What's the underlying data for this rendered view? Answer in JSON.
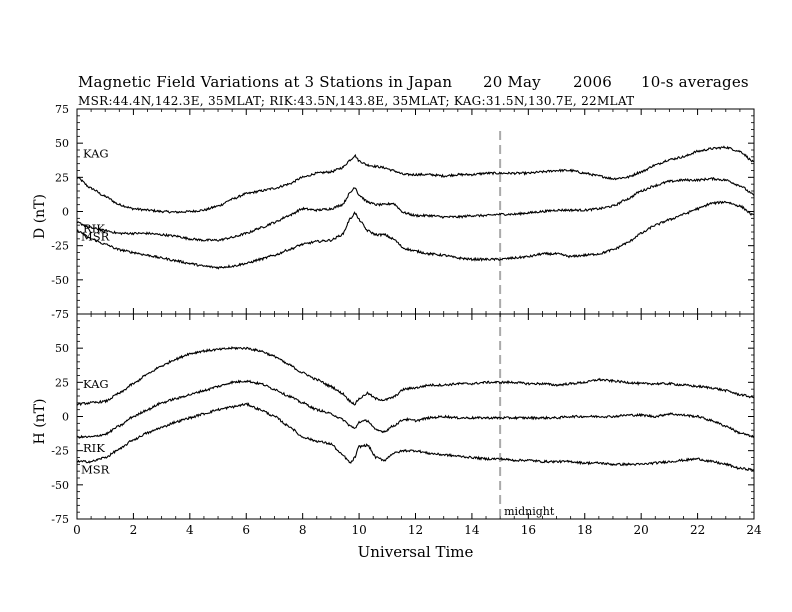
{
  "header": {
    "title": "Magnetic Field Variations at 3 Stations in Japan",
    "date": "20 May",
    "year": "2006",
    "averaging": "10-s averages",
    "stations_line": "MSR:44.4N,142.3E, 35MLAT;  RIK:43.5N,143.8E, 35MLAT;  KAG:31.5N,130.7E, 22MLAT"
  },
  "colors": {
    "trace": "#000000",
    "midnight_line": "#aaaaaa",
    "axis": "#000000"
  },
  "chart_data": [
    {
      "type": "line",
      "panel": "D",
      "ylabel": "D (nT)",
      "ylim": [
        -75,
        75
      ],
      "yticks": [
        -75,
        -50,
        -25,
        0,
        25,
        50,
        75
      ],
      "xlim": [
        0,
        24
      ],
      "xticks": [
        0,
        2,
        4,
        6,
        8,
        10,
        12,
        14,
        16,
        18,
        20,
        22,
        24
      ],
      "xtick_labels": [
        "",
        "",
        "",
        "",
        "",
        "",
        "",
        "",
        "",
        "",
        "",
        "",
        ""
      ],
      "grid": false,
      "series": [
        {
          "name": "KAG",
          "x": [
            0,
            0.5,
            1,
            1.5,
            2,
            2.5,
            3,
            3.5,
            4,
            4.5,
            5,
            5.5,
            6,
            6.5,
            7,
            7.5,
            8,
            8.5,
            9,
            9.4,
            9.7,
            9.85,
            10,
            10.3,
            10.6,
            10.9,
            11.2,
            11.6,
            12,
            12.5,
            13,
            13.5,
            14,
            14.5,
            15,
            15.5,
            16,
            16.5,
            17,
            17.5,
            18,
            18.5,
            19,
            19.5,
            20,
            20.5,
            21,
            21.5,
            22,
            22.5,
            23,
            23.5,
            24
          ],
          "y": [
            25,
            17,
            11,
            5,
            2,
            1,
            0,
            -0.5,
            0,
            1,
            4,
            9,
            13,
            15,
            17,
            20,
            25,
            28,
            29,
            32,
            38,
            41,
            37,
            34,
            33,
            32,
            30,
            27,
            27,
            27,
            26,
            27,
            27,
            28,
            28,
            28,
            28,
            29,
            30,
            30,
            28,
            26,
            24,
            25,
            29,
            34,
            38,
            40,
            44,
            46,
            47,
            44,
            36
          ]
        },
        {
          "name": "RIK",
          "x": [
            0,
            0.5,
            1,
            1.5,
            2,
            2.5,
            3,
            3.5,
            4,
            4.5,
            5,
            5.5,
            6,
            6.5,
            7,
            7.5,
            8,
            8.5,
            9,
            9.4,
            9.7,
            9.85,
            10,
            10.3,
            10.6,
            10.9,
            11.2,
            11.6,
            12,
            12.5,
            13,
            13.5,
            14,
            14.5,
            15,
            15.5,
            16,
            16.5,
            17,
            17.5,
            18,
            18.5,
            19,
            19.5,
            20,
            20.5,
            21,
            21.5,
            22,
            22.5,
            23,
            23.5,
            24
          ],
          "y": [
            -8,
            -12,
            -14,
            -16,
            -16,
            -16,
            -17,
            -18,
            -20,
            -21,
            -21,
            -19,
            -16,
            -12,
            -8,
            -3,
            2,
            1,
            2,
            5,
            14,
            18,
            12,
            7,
            5,
            5,
            6,
            -1,
            -3,
            -3,
            -4,
            -4,
            -3,
            -3,
            -2,
            -2,
            -1,
            0,
            1,
            1,
            1,
            2,
            4,
            9,
            15,
            19,
            22,
            23,
            23,
            24,
            23,
            19,
            12
          ]
        },
        {
          "name": "MSR",
          "x": [
            0,
            0.5,
            1,
            1.5,
            2,
            2.5,
            3,
            3.5,
            4,
            4.5,
            5,
            5.5,
            6,
            6.5,
            7,
            7.5,
            8,
            8.5,
            9,
            9.4,
            9.7,
            9.85,
            10,
            10.3,
            10.6,
            10.9,
            11.2,
            11.6,
            12,
            12.5,
            13,
            13.5,
            14,
            14.5,
            15,
            15.5,
            16,
            16.5,
            17,
            17.5,
            18,
            18.5,
            19,
            19.5,
            20,
            20.5,
            21,
            21.5,
            22,
            22.5,
            23,
            23.5,
            24
          ],
          "y": [
            -14,
            -20,
            -24,
            -28,
            -30,
            -32,
            -34,
            -36,
            -38,
            -40,
            -41,
            -40,
            -38,
            -35,
            -32,
            -28,
            -24,
            -22,
            -21,
            -17,
            -5,
            -1,
            -6,
            -14,
            -17,
            -17,
            -20,
            -27,
            -29,
            -31,
            -32,
            -34,
            -35,
            -35,
            -35,
            -34,
            -33,
            -31,
            -31,
            -33,
            -32,
            -31,
            -28,
            -23,
            -16,
            -10,
            -6,
            -2,
            2,
            6,
            7,
            4,
            -3
          ]
        }
      ]
    },
    {
      "type": "line",
      "panel": "H",
      "ylabel": "H (nT)",
      "xlabel": "Universal Time",
      "ylim": [
        -75,
        75
      ],
      "yticks": [
        -75,
        -50,
        -25,
        0,
        25,
        50
      ],
      "xlim": [
        0,
        24
      ],
      "xticks": [
        0,
        2,
        4,
        6,
        8,
        10,
        12,
        14,
        16,
        18,
        20,
        22,
        24
      ],
      "xtick_labels": [
        "0",
        "2",
        "4",
        "6",
        "8",
        "10",
        "12",
        "14",
        "16",
        "18",
        "20",
        "22",
        "24"
      ],
      "grid": false,
      "annotation": {
        "x": 15,
        "label": "midnight"
      },
      "series": [
        {
          "name": "KAG",
          "x": [
            0,
            0.5,
            1,
            1.5,
            2,
            2.5,
            3,
            3.5,
            4,
            4.5,
            5,
            5.5,
            6,
            6.5,
            7,
            7.5,
            8,
            8.5,
            9,
            9.4,
            9.7,
            9.85,
            10,
            10.3,
            10.6,
            10.9,
            11.2,
            11.6,
            12,
            12.5,
            13,
            13.5,
            14,
            14.5,
            15,
            15.5,
            16,
            16.5,
            17,
            17.5,
            18,
            18.5,
            19,
            19.5,
            20,
            20.5,
            21,
            21.5,
            22,
            22.5,
            23,
            23.5,
            24
          ],
          "y": [
            9,
            10,
            11,
            17,
            24,
            31,
            37,
            42,
            46,
            48,
            49,
            50,
            50,
            48,
            44,
            38,
            32,
            27,
            22,
            17,
            11,
            9,
            13,
            17,
            13,
            12,
            14,
            20,
            21,
            23,
            23,
            24,
            24,
            25,
            25,
            25,
            24,
            24,
            23,
            24,
            25,
            27,
            26,
            25,
            24,
            24,
            24,
            23,
            22,
            21,
            19,
            16,
            14
          ]
        },
        {
          "name": "RIK",
          "x": [
            0,
            0.5,
            1,
            1.5,
            2,
            2.5,
            3,
            3.5,
            4,
            4.5,
            5,
            5.5,
            6,
            6.5,
            7,
            7.5,
            8,
            8.5,
            9,
            9.4,
            9.7,
            9.85,
            10,
            10.3,
            10.6,
            10.9,
            11.2,
            11.6,
            12,
            12.5,
            13,
            13.5,
            14,
            14.5,
            15,
            15.5,
            16,
            16.5,
            17,
            17.5,
            18,
            18.5,
            19,
            19.5,
            20,
            20.5,
            21,
            21.5,
            22,
            22.5,
            23,
            23.5,
            24
          ],
          "y": [
            -15,
            -15,
            -13,
            -7,
            0,
            5,
            10,
            13,
            16,
            19,
            22,
            25,
            26,
            24,
            20,
            15,
            10,
            5,
            2,
            -2,
            -7,
            -9,
            -4,
            -3,
            -10,
            -11,
            -7,
            -2,
            -3,
            -1,
            0,
            -1,
            -1,
            -1,
            -1,
            -1,
            -1,
            -1,
            -1,
            0,
            0,
            0,
            0,
            1,
            1,
            0,
            2,
            1,
            0,
            -3,
            -7,
            -12,
            -15
          ]
        },
        {
          "name": "MSR",
          "x": [
            0,
            0.5,
            1,
            1.5,
            2,
            2.5,
            3,
            3.5,
            4,
            4.5,
            5,
            5.5,
            6,
            6.5,
            7,
            7.5,
            8,
            8.5,
            9,
            9.4,
            9.7,
            9.85,
            10,
            10.3,
            10.6,
            10.9,
            11.2,
            11.6,
            12,
            12.5,
            13,
            13.5,
            14,
            14.5,
            15,
            15.5,
            16,
            16.5,
            17,
            17.5,
            18,
            18.5,
            19,
            19.5,
            20,
            20.5,
            21,
            21.5,
            22,
            22.5,
            23,
            23.5,
            24
          ],
          "y": [
            -33,
            -33,
            -30,
            -24,
            -17,
            -12,
            -8,
            -4,
            -1,
            2,
            5,
            7,
            9,
            5,
            0,
            -7,
            -15,
            -18,
            -20,
            -28,
            -34,
            -30,
            -22,
            -21,
            -30,
            -32,
            -27,
            -25,
            -25,
            -27,
            -28,
            -29,
            -30,
            -31,
            -31,
            -32,
            -32,
            -33,
            -33,
            -33,
            -34,
            -34,
            -35,
            -35,
            -35,
            -34,
            -33,
            -32,
            -31,
            -33,
            -35,
            -38,
            -39
          ]
        }
      ]
    }
  ]
}
